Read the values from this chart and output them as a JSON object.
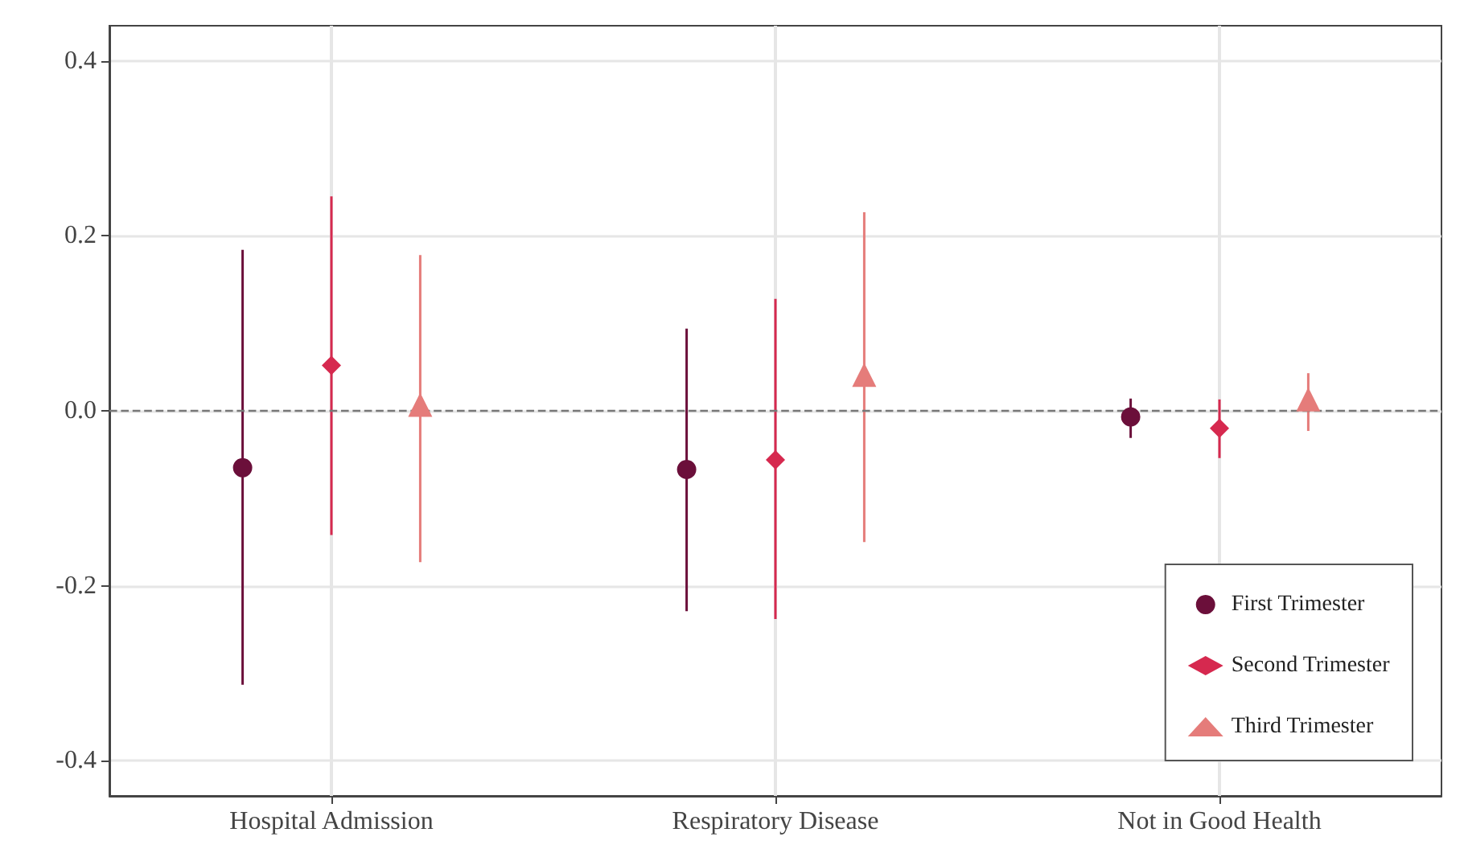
{
  "chart_data": {
    "type": "scatter",
    "categories": [
      "Hospital Admission",
      "Respiratory Disease",
      "Not in Good Health"
    ],
    "series": [
      {
        "name": "First Trimester",
        "color": "#6b0f3a",
        "marker": "circle",
        "values": [
          -0.065,
          -0.067,
          -0.007
        ],
        "errors": [
          [
            -0.313,
            0.184
          ],
          [
            -0.229,
            0.094
          ],
          [
            -0.031,
            0.014
          ]
        ]
      },
      {
        "name": "Second Trimester",
        "color": "#d6294f",
        "marker": "diamond",
        "values": [
          0.052,
          -0.056,
          -0.02
        ],
        "errors": [
          [
            -0.142,
            0.245
          ],
          [
            -0.238,
            0.128
          ],
          [
            -0.054,
            0.013
          ]
        ]
      },
      {
        "name": "Third Trimester",
        "color": "#e57c7a",
        "marker": "triangle",
        "values": [
          0.007,
          0.041,
          0.013
        ],
        "errors": [
          [
            -0.173,
            0.178
          ],
          [
            -0.15,
            0.227
          ],
          [
            -0.023,
            0.043
          ]
        ]
      }
    ],
    "ylim": [
      -0.44,
      0.44
    ],
    "yticks": [
      {
        "value": -0.4,
        "label": "-0.4"
      },
      {
        "value": -0.2,
        "label": "-0.2"
      },
      {
        "value": 0,
        "label": "0.0"
      },
      {
        "value": 0.2,
        "label": "0.2"
      },
      {
        "value": 0.4,
        "label": "0.4"
      }
    ],
    "grid": true,
    "legend": "bottom right",
    "ref_lines": [
      {
        "axis": "y",
        "value": 0,
        "color": "#777777",
        "line_style": "dashed"
      }
    ]
  }
}
